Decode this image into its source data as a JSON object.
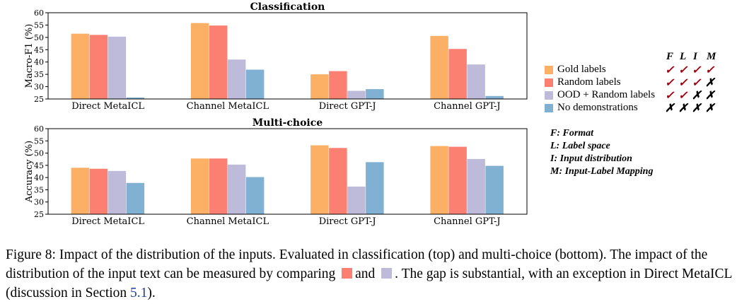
{
  "chart_data": [
    {
      "type": "bar",
      "title": "Classification",
      "ylabel": "Macro-F1 (%)",
      "ylim": [
        25,
        60
      ],
      "yticks": [
        25,
        30,
        35,
        40,
        45,
        50,
        55,
        60
      ],
      "categories": [
        "Direct MetaICL",
        "Channel MetaICL",
        "Direct GPT-J",
        "Channel GPT-J"
      ],
      "series": [
        {
          "name": "Gold labels",
          "color": "#fbb066",
          "values": [
            51.5,
            55.8,
            35.0,
            50.6
          ]
        },
        {
          "name": "Random labels",
          "color": "#fb8072",
          "values": [
            51.0,
            54.8,
            36.3,
            45.3
          ]
        },
        {
          "name": "OOD + Random labels",
          "color": "#bebad9",
          "values": [
            50.3,
            41.0,
            28.3,
            39.0
          ]
        },
        {
          "name": "No demonstrations",
          "color": "#80b1d3",
          "values": [
            25.6,
            36.9,
            29.0,
            26.2
          ]
        }
      ]
    },
    {
      "type": "bar",
      "title": "Multi-choice",
      "ylabel": "Accuracy (%)",
      "ylim": [
        25,
        60
      ],
      "yticks": [
        25,
        30,
        35,
        40,
        45,
        50,
        55,
        60
      ],
      "categories": [
        "Direct MetaICL",
        "Channel MetaICL",
        "Direct GPT-J",
        "Channel GPT-J"
      ],
      "series": [
        {
          "name": "Gold labels",
          "color": "#fbb066",
          "values": [
            44.0,
            47.8,
            53.2,
            52.9
          ]
        },
        {
          "name": "Random labels",
          "color": "#fb8072",
          "values": [
            43.6,
            47.8,
            52.1,
            52.6
          ]
        },
        {
          "name": "OOD + Random labels",
          "color": "#bebad9",
          "values": [
            42.7,
            45.3,
            36.3,
            47.6
          ]
        },
        {
          "name": "No demonstrations",
          "color": "#80b1d3",
          "values": [
            37.8,
            40.2,
            46.3,
            44.8
          ]
        }
      ]
    }
  ],
  "legend": {
    "criteria": [
      "F",
      "L",
      "I",
      "M"
    ],
    "rows": [
      {
        "label": "Gold labels",
        "color": "#fbb066",
        "marks": [
          "✓",
          "✓",
          "✓",
          "✓"
        ]
      },
      {
        "label": "Random labels",
        "color": "#fb8072",
        "marks": [
          "✓",
          "✓",
          "✓",
          "✗"
        ]
      },
      {
        "label": "OOD + Random labels",
        "color": "#bebad9",
        "marks": [
          "✓",
          "✓",
          "✗",
          "✗"
        ]
      },
      {
        "label": "No demonstrations",
        "color": "#80b1d3",
        "marks": [
          "✗",
          "✗",
          "✗",
          "✗"
        ]
      }
    ]
  },
  "keys": [
    "F: Format",
    "L: Label space",
    "I: Input distribution",
    "M: Input-Label Mapping"
  ],
  "caption": {
    "part1": "Figure 8: Impact of the distribution of the inputs. Evaluated in classification (top) and multi-choice (bottom). The impact of the distribution of the input text can be measured by comparing",
    "swatch1": "#fb8072",
    "and": "and",
    "swatch2": "#bebad9",
    "part2": ". The gap is substantial, with an exception in Direct MetaICL (discussion in Section",
    "section_ref": "5.1",
    "part3": ")."
  }
}
